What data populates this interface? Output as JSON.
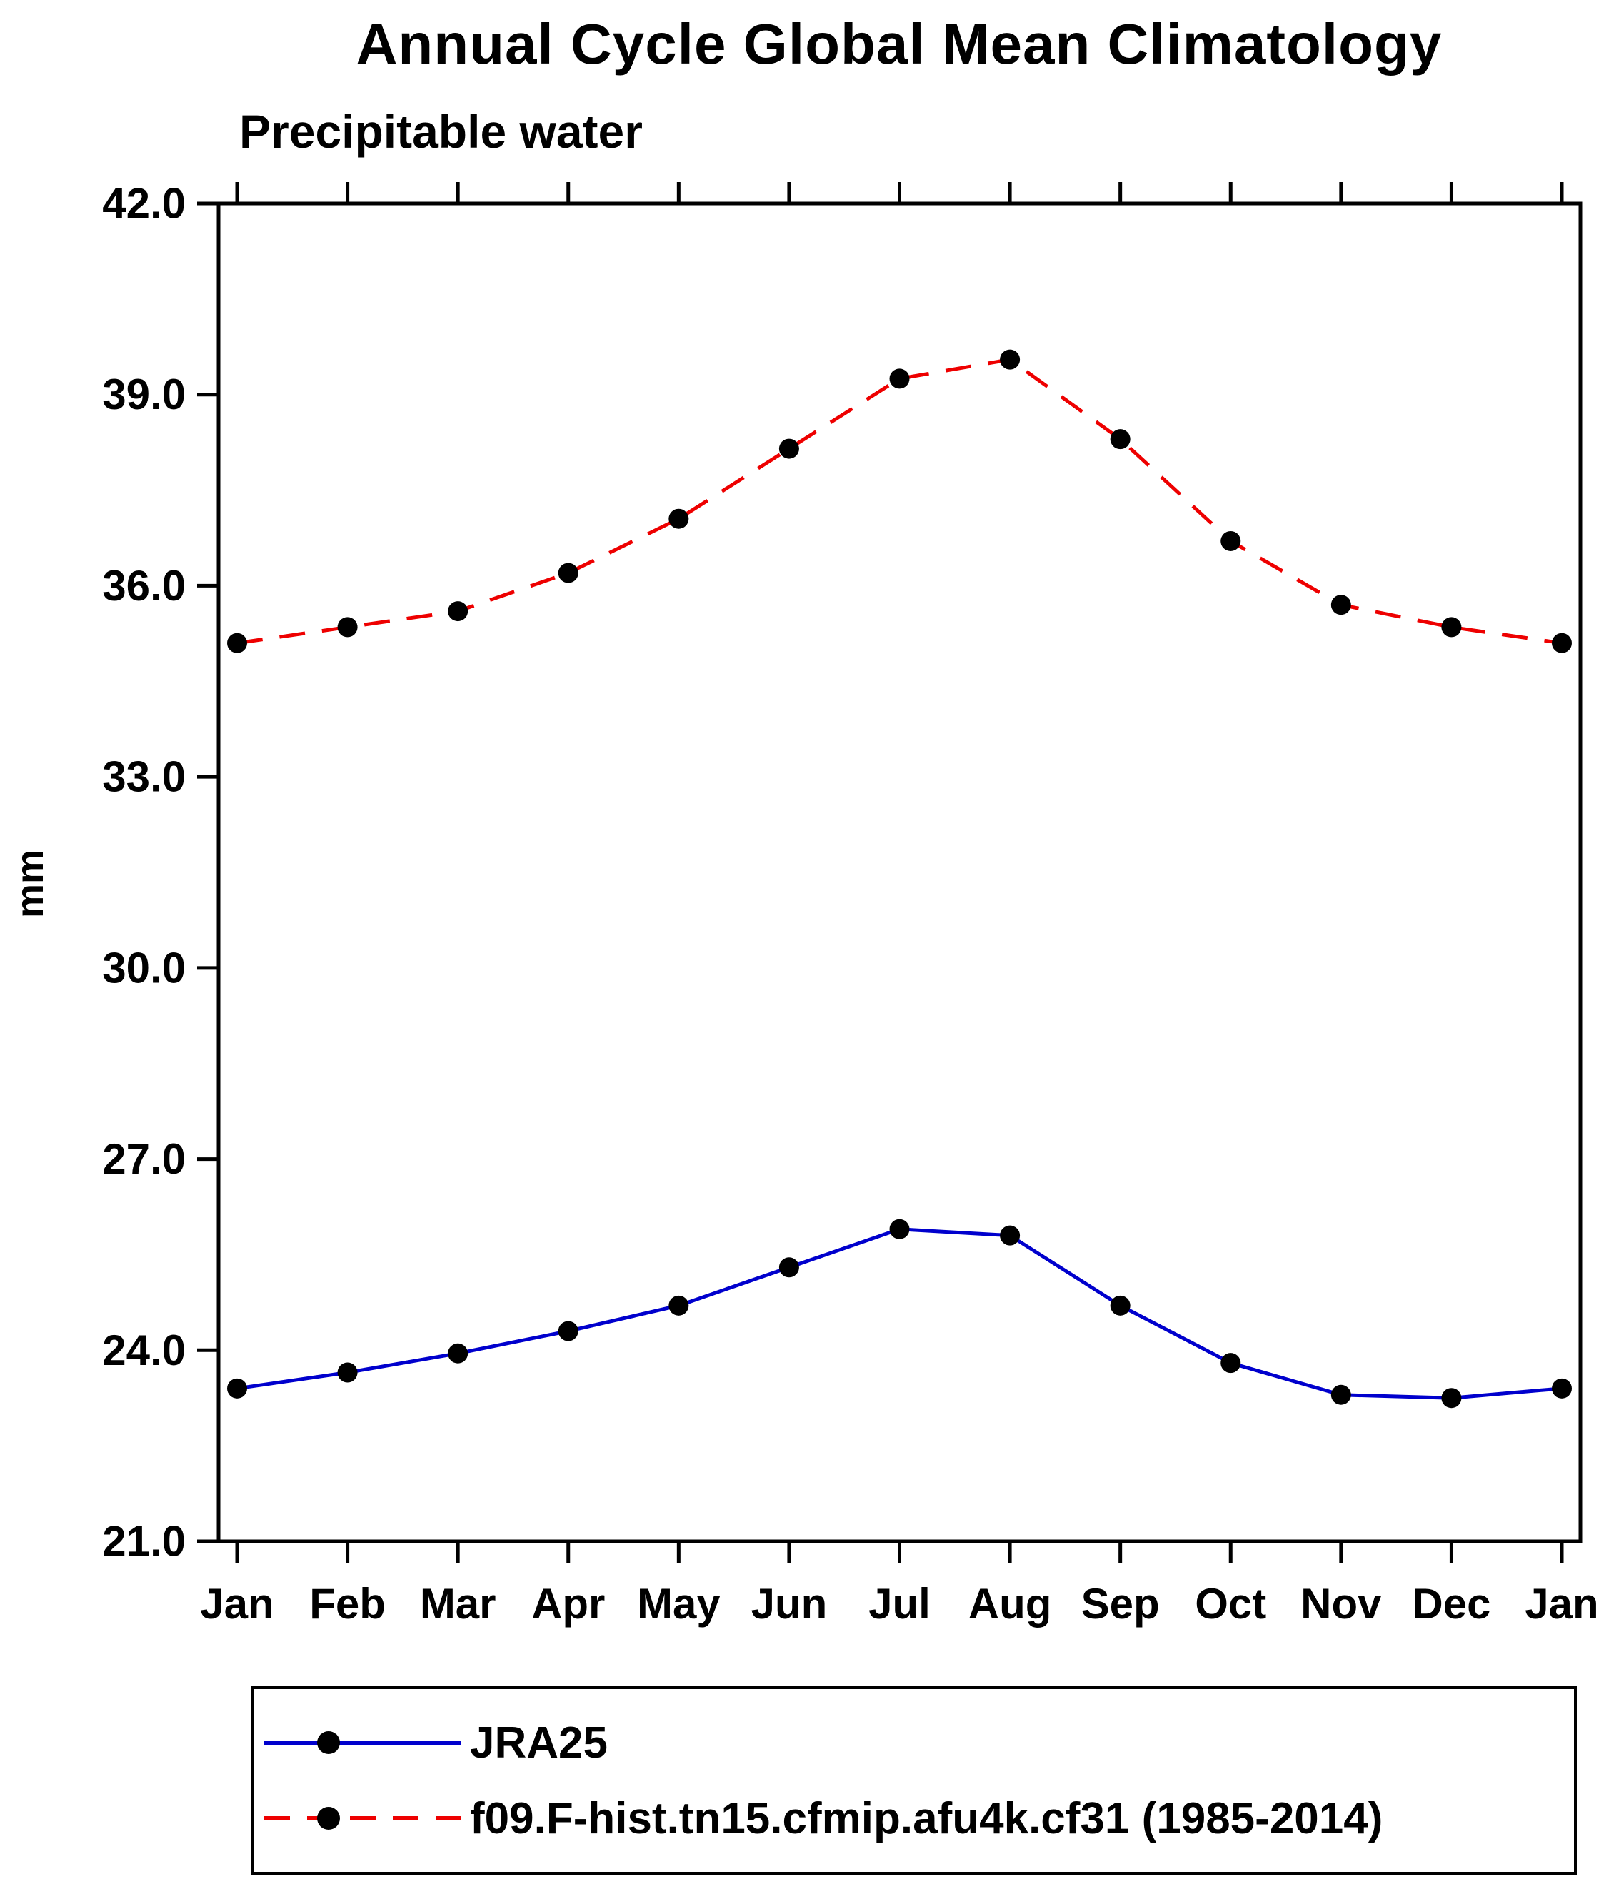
{
  "page": {
    "background": "#ffffff",
    "text_color": "#000000"
  },
  "chart_data": {
    "type": "line",
    "title": "Annual Cycle Global Mean Climatology",
    "subtitle": "Precipitable water",
    "xlabel": "",
    "ylabel": "mm",
    "categories": [
      "Jan",
      "Feb",
      "Mar",
      "Apr",
      "May",
      "Jun",
      "Jul",
      "Aug",
      "Sep",
      "Oct",
      "Nov",
      "Dec",
      "Jan"
    ],
    "ylim": [
      21.0,
      42.0
    ],
    "yticks": [
      21.0,
      24.0,
      27.0,
      30.0,
      33.0,
      36.0,
      39.0,
      42.0
    ],
    "ytick_labels": [
      "21.0",
      "24.0",
      "27.0",
      "30.0",
      "33.0",
      "36.0",
      "39.0",
      "42.0"
    ],
    "grid": false,
    "frame_color": "#000000",
    "legend_position": "bottom",
    "marker": {
      "shape": "circle",
      "color": "#000000"
    },
    "series": [
      {
        "name": "JRA25",
        "color": "#0000cd",
        "line_style": "solid",
        "dash": "",
        "values": [
          23.4,
          23.65,
          23.95,
          24.3,
          24.7,
          25.3,
          25.9,
          25.8,
          24.7,
          23.8,
          23.3,
          23.25,
          23.4
        ]
      },
      {
        "name": "f09.F-hist.tn15.cfmip.afu4k.cf31 (1985-2014)",
        "color": "#ee0000",
        "line_style": "dashed",
        "dash": "36 24",
        "values": [
          35.1,
          35.35,
          35.6,
          36.2,
          37.05,
          38.15,
          39.25,
          39.55,
          38.3,
          36.7,
          35.7,
          35.35,
          35.1
        ]
      }
    ]
  }
}
